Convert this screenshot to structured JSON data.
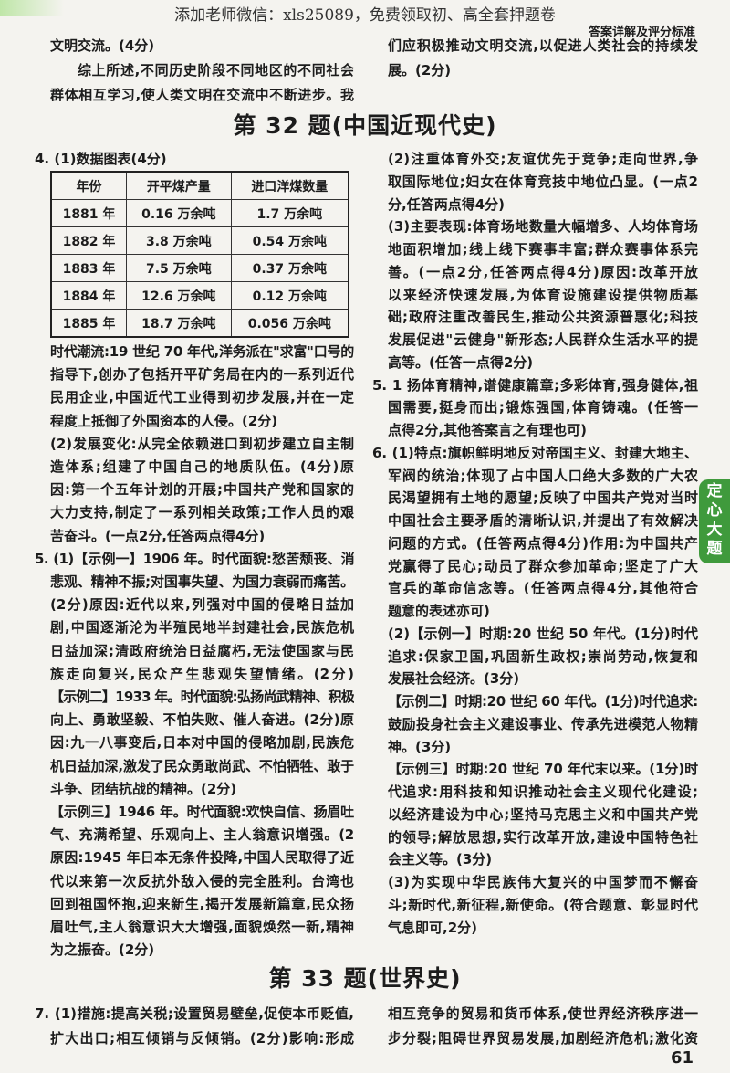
{
  "watermark": "添加老师微信：xls25089，免费领取初、高全套押题卷",
  "running_head": "答案详解及评分标准",
  "side_tab": "定心大题",
  "page_number": "61",
  "sections": {
    "s32": "第 32 题(中国近现代史)",
    "s33": "第 33 题(世界史)"
  },
  "left_top": [
    "文明交流。(4分)",
    "综上所述,不同历史阶段不同地区的不同社会",
    "群体相互学习,使人类文明在交流中不断进步。我"
  ],
  "right_top": [
    "们应积极推动文明交流,以促进人类社会的持续发",
    "展。(2分)"
  ],
  "q4_head": "4. (1)数据图表(4分)",
  "table": {
    "headers": [
      "年份",
      "开平煤产量",
      "进口洋煤数量"
    ],
    "rows": [
      [
        "1881 年",
        "0.16 万余吨",
        "1.7 万余吨"
      ],
      [
        "1882 年",
        "3.8 万余吨",
        "0.54 万余吨"
      ],
      [
        "1883 年",
        "7.5 万余吨",
        "0.37 万余吨"
      ],
      [
        "1884 年",
        "12.6 万余吨",
        "0.12 万余吨"
      ],
      [
        "1885 年",
        "18.7 万余吨",
        "0.056 万余吨"
      ]
    ]
  },
  "left_main": [
    "时代潮流:19 世纪 70 年代,洋务派在\"求富\"口号的",
    "指导下,创办了包括开平矿务局在内的一系列近代",
    "民用企业,中国近代工业得到初步发展,并在一定",
    "程度上抵御了外国资本的人侵。(2分)",
    "(2)发展变化:从完全依赖进口到初步建立自主制",
    "造体系;组建了中国自己的地质队伍。(4分)原",
    "因:第一个五年计划的开展;中国共产党和国家的",
    "大力支持,制定了一系列相关政策;工作人员的艰",
    "苦奋斗。(一点2分,任答两点得4分)",
    "5. (1)【示例一】1906 年。时代面貌:愁苦颓丧、消极",
    "悲观、精神不振;对国事失望、为国力衰弱而痛苦。",
    "(2分)原因:近代以来,列强对中国的侵略日益加",
    "剧,中国逐渐沦为半殖民地半封建社会,民族危机",
    "日益加深;清政府统治日益腐朽,无法使国家与民",
    "族走向复兴,民众产生悲观失望情绪。(2分)",
    "【示例二】1933 年。时代面貌:弘扬尚武精神、积极",
    "向上、勇敢坚毅、不怕失败、催人奋进。(2分)原",
    "因:九一八事变后,日本对中国的侵略加剧,民族危",
    "机日益加深,激发了民众勇敢尚武、不怕牺牲、敢于",
    "斗争、团结抗战的精神。(2分)",
    "【示例三】1946 年。时代面貌:欢快自信、扬眉吐",
    "气、充满希望、乐观向上、主人翁意识增强。(2分)",
    "原因:1945 年日本无条件投降,中国人民取得了近",
    "代以来第一次反抗外敌入侵的完全胜利。台湾也",
    "回到祖国怀抱,迎来新生,揭开发展新篇章,民众扬",
    "眉吐气,主人翁意识大大增强,面貌焕然一新,精神",
    "为之振奋。(2分)"
  ],
  "right_main": [
    "(2)注重体育外交;友谊优先于竞争;走向世界,争",
    "取国际地位;妇女在体育竞技中地位凸显。(一点2",
    "分,任答两点得4分)",
    "(3)主要表现:体育场地数量大幅增多、人均体育场",
    "地面积增加;线上线下赛事丰富;群众赛事体系完",
    "善。(一点2分,任答两点得4分)原因:改革开放",
    "以来经济快速发展,为体育设施建设提供物质基",
    "础;政府注重改善民生,推动公共资源普惠化;科技",
    "发展促进\"云健身\"新形态;人民群众生活水平的提",
    "高等。(任答一点得2分)",
    "5. 1 扬体育精神,谱健康篇章;多彩体育,强身健体,祖",
    "国需要,挺身而出;锻炼强国,体育铸魂。(任答一",
    "点得2分,其他答案言之有理也可)",
    "6. (1)特点:旗帜鲜明地反对帝国主义、封建大地主、",
    "军阀的统治;体现了占中国人口绝大多数的广大农",
    "民渴望拥有土地的愿望;反映了中国共产党对当时",
    "中国社会主要矛盾的清晰认识,并提出了有效解决",
    "问题的方式。(任答两点得4分)作用:为中国共产",
    "党赢得了民心;动员了群众参加革命;坚定了广大",
    "官兵的革命信念等。(任答两点得4分,其他符合",
    "题意的表述亦可)",
    "(2)【示例一】时期:20 世纪 50 年代。(1分)时代",
    "追求:保家卫国,巩固新生政权;崇尚劳动,恢复和",
    "发展社会经济。(3分)",
    "【示例二】时期:20 世纪 60 年代。(1分)时代追求:",
    "鼓励投身社会主义建设事业、传承先进模范人物精",
    "神。(3分)",
    "【示例三】时期:20 世纪 70 年代末以来。(1分)时",
    "代追求:用科技和知识推动社会主义现代化建设;",
    "以经济建设为中心;坚持马克思主义和中国共产党",
    "的领导;解放思想,实行改革开放,建设中国特色社",
    "会主义等。(3分)",
    "(3)为实现中华民族伟大复兴的中国梦而不懈奋",
    "斗;新时代,新征程,新使命。(符合题意、彰显时代",
    "气息即可,2分)"
  ],
  "left_bottom": [
    "7. (1)措施:提高关税;设置贸易壁垒,促使本币贬值,",
    "扩大出口;相互倾销与反倾销。(2分)影响:形成"
  ],
  "right_bottom": [
    "相互竞争的贸易和货币体系,使世界经济秩序进一",
    "步分裂;阻碍世界贸易发展,加剧经济危机;激化资"
  ],
  "colors": {
    "tab_green": "#3f9a3c",
    "paper": "#f4f3ef",
    "ink": "#1c1c1c"
  }
}
